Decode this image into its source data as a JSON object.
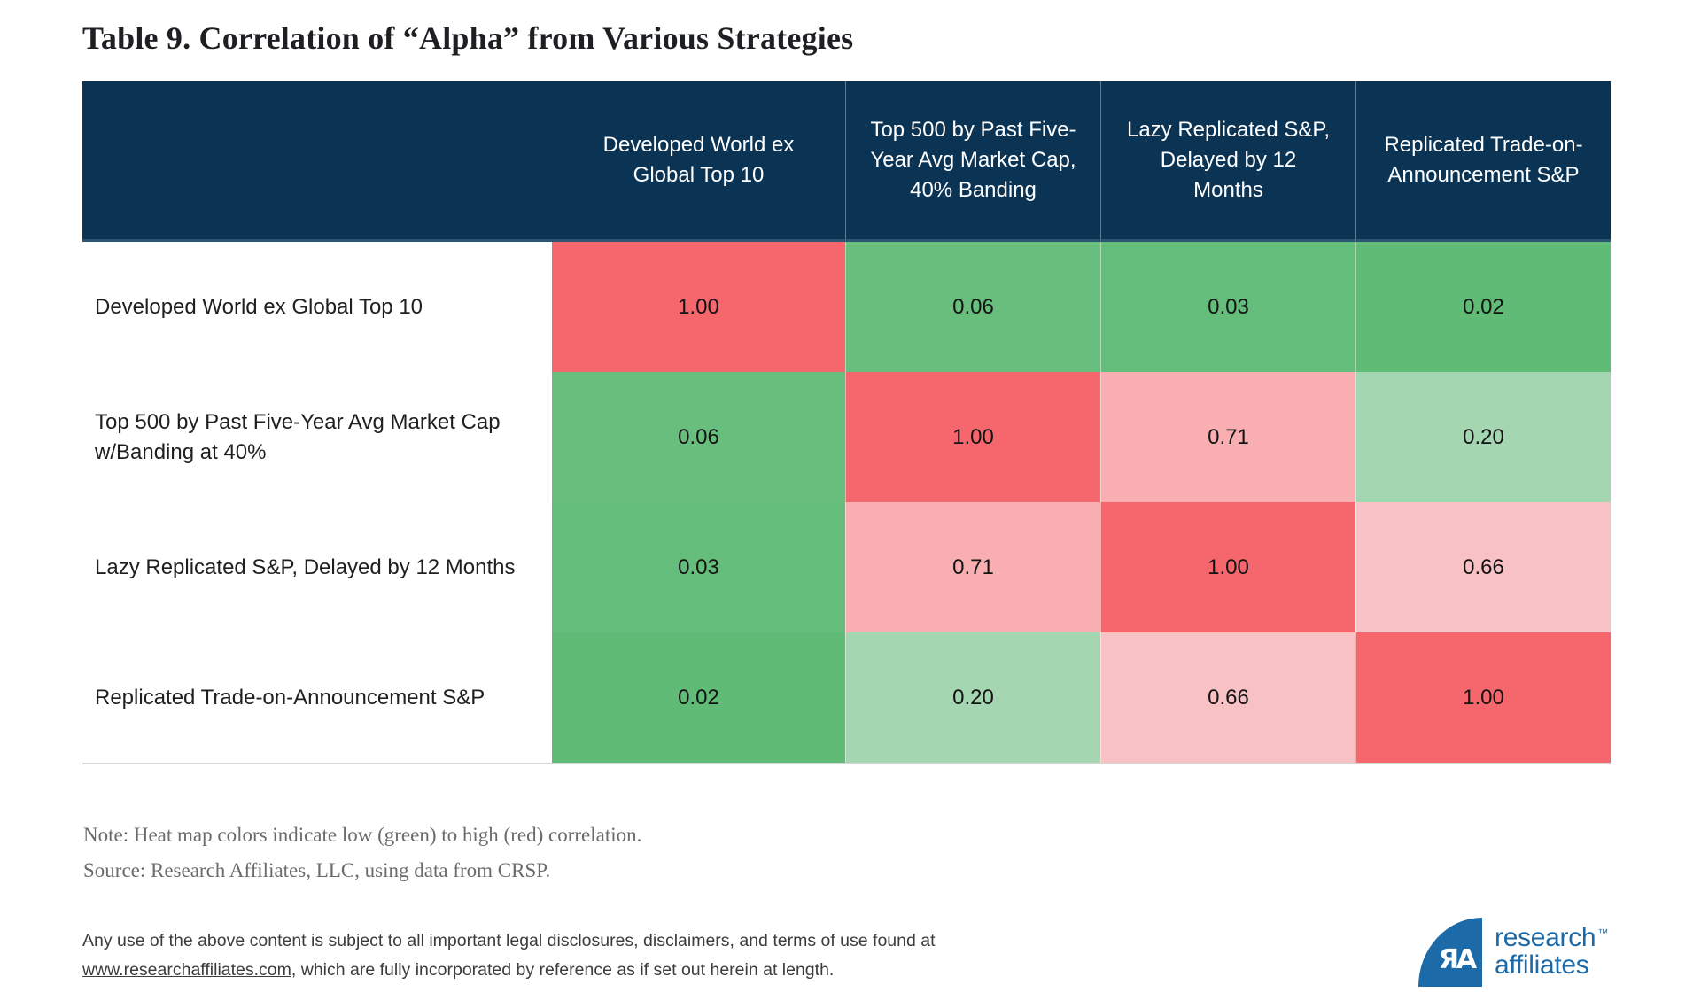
{
  "title": "Table 9. Correlation of “Alpha” from Various Strategies",
  "chart_data": {
    "type": "heatmap",
    "title": "Table 9. Correlation of “Alpha” from Various Strategies",
    "columns": [
      "Developed World ex Global Top 10",
      "Top 500 by Past Five-Year Avg Market Cap, 40% Banding",
      "Lazy Replicated S&P, Delayed by 12 Months",
      "Replicated Trade-on-Announcement S&P"
    ],
    "rows": [
      "Developed World ex Global Top 10",
      "Top 500 by Past Five-Year Avg Market Cap w/Banding at 40%",
      "Lazy Replicated S&P, Delayed by 12 Months",
      "Replicated Trade-on-Announcement S&P"
    ],
    "matrix": [
      [
        1.0,
        0.06,
        0.03,
        0.02
      ],
      [
        0.06,
        1.0,
        0.71,
        0.2
      ],
      [
        0.03,
        0.71,
        1.0,
        0.66
      ],
      [
        0.02,
        0.2,
        0.66,
        1.0
      ]
    ],
    "value_range": [
      0,
      1
    ],
    "color_scale": {
      "low": "#5FBB76",
      "high": "#F5676C",
      "meaning": "low (green) to high (red) correlation"
    },
    "legend": "none",
    "grid": "off"
  },
  "table": {
    "header_bg": "#0B3354",
    "col_headers": [
      "Developed World ex Global Top 10",
      "Top 500 by Past Five-Year Avg Market Cap, 40% Banding",
      "Lazy Replicated S&P, Delayed by 12 Months",
      "Replicated Trade-on-Announcement S&P"
    ],
    "rows": [
      {
        "label": "Developed World ex Global Top 10",
        "cells": [
          {
            "value": "1.00",
            "color": "#F5676C"
          },
          {
            "value": "0.06",
            "color": "#68BE7C"
          },
          {
            "value": "0.03",
            "color": "#64BD7A"
          },
          {
            "value": "0.02",
            "color": "#5FBB76"
          }
        ]
      },
      {
        "label": "Top 500 by Past Five-Year Avg Market Cap w/Banding at 40%",
        "cells": [
          {
            "value": "0.06",
            "color": "#68BE7C"
          },
          {
            "value": "1.00",
            "color": "#F5676C"
          },
          {
            "value": "0.71",
            "color": "#F9AEB1"
          },
          {
            "value": "0.20",
            "color": "#A5D6B2"
          }
        ]
      },
      {
        "label": "Lazy Replicated S&P, Delayed by 12 Months",
        "cells": [
          {
            "value": "0.03",
            "color": "#64BD7A"
          },
          {
            "value": "0.71",
            "color": "#F9AEB1"
          },
          {
            "value": "1.00",
            "color": "#F5676C"
          },
          {
            "value": "0.66",
            "color": "#F8C1C4"
          }
        ]
      },
      {
        "label": "Replicated Trade-on-Announcement S&P",
        "cells": [
          {
            "value": "0.02",
            "color": "#5FBB76"
          },
          {
            "value": "0.20",
            "color": "#A5D6B2"
          },
          {
            "value": "0.66",
            "color": "#F8C1C4"
          },
          {
            "value": "1.00",
            "color": "#F5676C"
          }
        ]
      }
    ]
  },
  "note": "Note: Heat map colors indicate low (green) to high (red) correlation.",
  "source": "Source: Research Affiliates, LLC, using data from CRSP.",
  "legal": {
    "line1": "Any use of the above content is subject to all important legal disclosures, disclaimers, and terms of use found at",
    "link": "www.researchaffiliates.com",
    "line2_rest": ", which are fully incorporated by reference as if set out herein at length."
  },
  "logo": {
    "monogram": "ЯA",
    "line1": "research",
    "tm": "™",
    "line2": "affiliates",
    "brand_color": "#1D6AA8"
  }
}
